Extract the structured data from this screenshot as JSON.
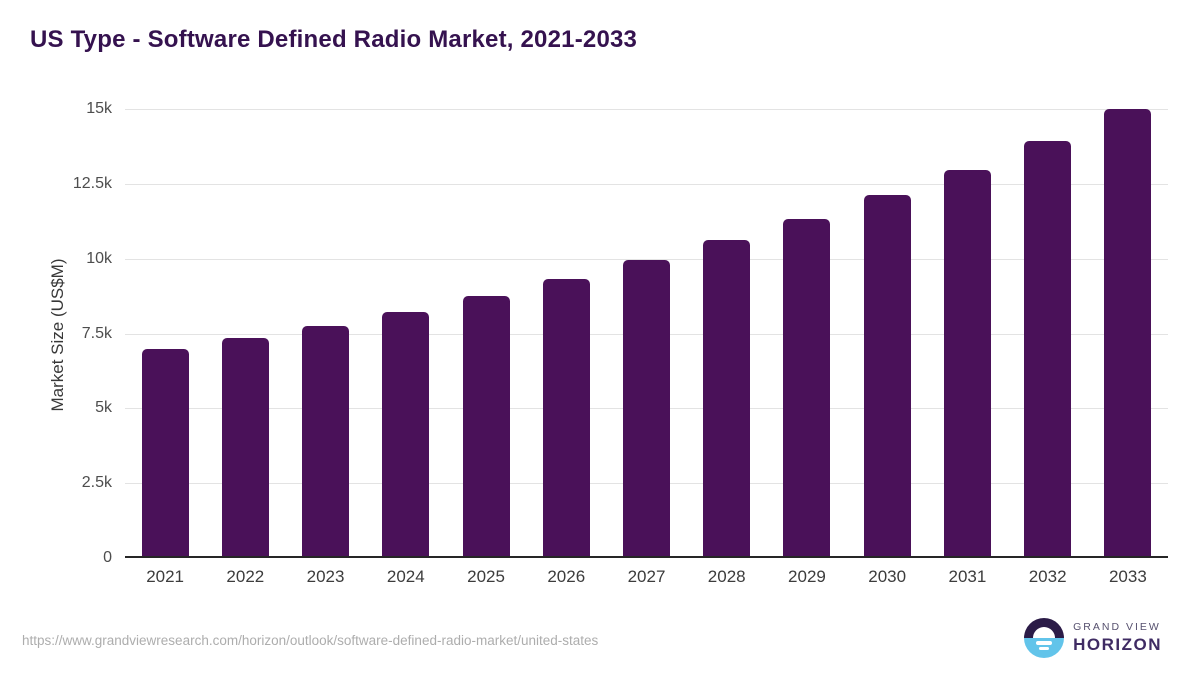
{
  "title": "US Type - Software Defined Radio Market, 2021-2033",
  "footer": {
    "source_url": "https://www.grandviewresearch.com/horizon/outlook/software-defined-radio-market/united-states"
  },
  "logo": {
    "top_text": "GRAND VIEW",
    "bottom_text": "HORIZON"
  },
  "colors": {
    "bar": "#4a1159",
    "title_text": "#35124f",
    "gridline": "#e3e3e3",
    "axis_line": "#262626",
    "tick_label": "#4d4d4d",
    "source_url_text": "#adadad",
    "logo_circle_top": "#2b1b47",
    "logo_circle_bottom": "#62c4ea",
    "logo_text": "#3f2b63"
  },
  "chart_data": {
    "type": "bar",
    "title": "US Type - Software Defined Radio Market, 2021-2033",
    "categories": [
      "2021",
      "2022",
      "2023",
      "2024",
      "2025",
      "2026",
      "2027",
      "2028",
      "2029",
      "2030",
      "2031",
      "2032",
      "2033"
    ],
    "values": [
      6900,
      7270,
      7690,
      8160,
      8700,
      9270,
      9900,
      10560,
      11260,
      12050,
      12900,
      13870,
      14950
    ],
    "xlabel": "",
    "ylabel": "Market Size (US$M)",
    "ylim": [
      0,
      15000
    ],
    "yticks": [
      0,
      2500,
      5000,
      7500,
      10000,
      12500,
      15000
    ],
    "ytick_labels": [
      "0",
      "2.5k",
      "5k",
      "7.5k",
      "10k",
      "12.5k",
      "15k"
    ],
    "grid": "horizontal",
    "legend": "none",
    "bar_color": "#4a1159"
  }
}
